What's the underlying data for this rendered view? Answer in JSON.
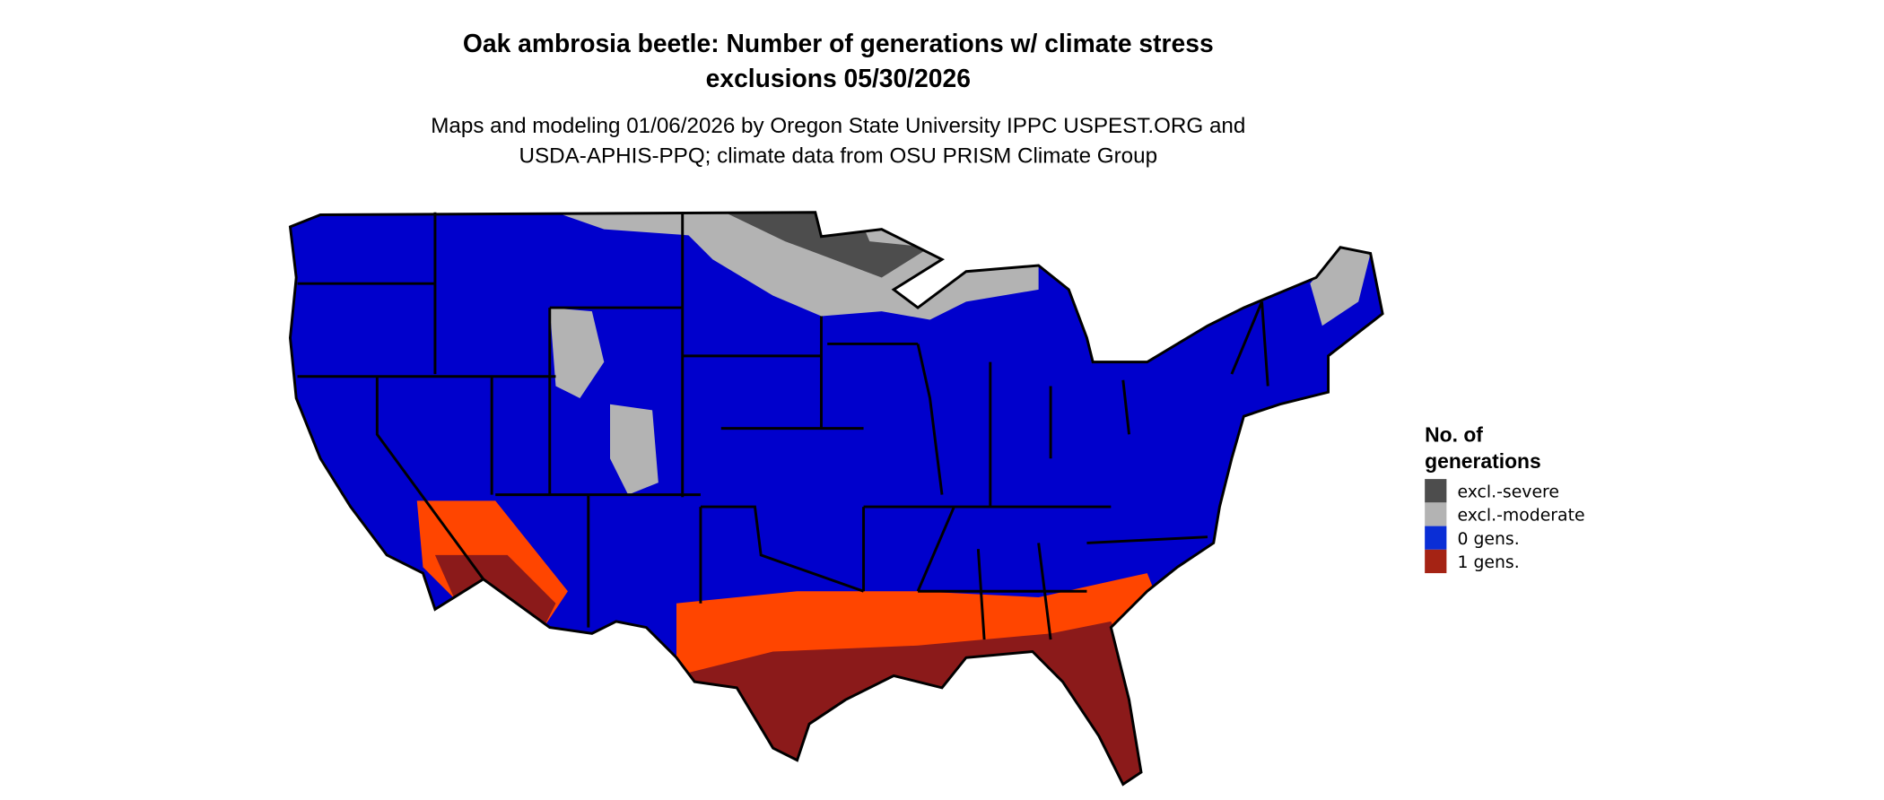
{
  "title_line1": "Oak ambrosia beetle: Number of generations w/ climate stress",
  "title_line2": "exclusions 05/30/2026",
  "subtitle_line1": "Maps and modeling 01/06/2026 by Oregon State University IPPC USPEST.ORG and",
  "subtitle_line2": "USDA-APHIS-PPQ; climate data from OSU PRISM Climate Group",
  "legend": {
    "title_line1": "No. of",
    "title_line2": "generations",
    "items": [
      {
        "label": "excl.-severe",
        "color": "#4d4d4d"
      },
      {
        "label": "excl.-moderate",
        "color": "#b3b3b3"
      },
      {
        "label": "0 gens.",
        "color": "#0a2ed6"
      },
      {
        "label": "1 gens.",
        "color": "#a52314"
      }
    ]
  },
  "map_colors": {
    "zero_gens": "#0000cc",
    "partial": "#ff4500",
    "one_gens": "#8b1a1a"
  }
}
